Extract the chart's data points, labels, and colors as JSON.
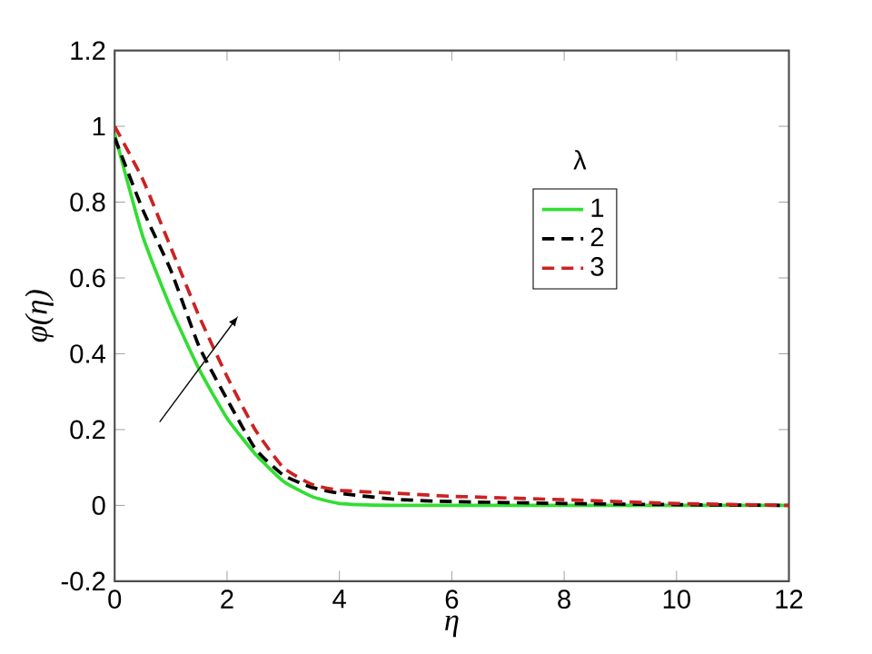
{
  "chart_data": {
    "type": "line",
    "xlabel": "η",
    "ylabel": "φ(η)",
    "legend_title": "λ",
    "legend": "right",
    "xlim": [
      0,
      12
    ],
    "ylim": [
      -0.2,
      1.2
    ],
    "xticks": [
      0,
      2,
      4,
      6,
      8,
      10,
      12
    ],
    "yticks": [
      -0.2,
      0,
      0.2,
      0.4,
      0.6,
      0.8,
      1,
      1.2
    ],
    "grid": false,
    "series": [
      {
        "name": "1",
        "color": "#33dd33",
        "line_style": "solid",
        "x": [
          0,
          0.5,
          1,
          1.5,
          2,
          2.5,
          3,
          3.5,
          4,
          5,
          6,
          8,
          10,
          12
        ],
        "values": [
          0.98,
          0.71,
          0.52,
          0.36,
          0.23,
          0.136,
          0.064,
          0.024,
          0.005,
          0,
          0,
          0,
          0,
          0
        ]
      },
      {
        "name": "2",
        "color": "#000000",
        "line_style": "dashed",
        "x": [
          0,
          0.5,
          1,
          1.5,
          2,
          2.5,
          3,
          3.5,
          4,
          5,
          6,
          8,
          10,
          12
        ],
        "values": [
          0.97,
          0.78,
          0.62,
          0.42,
          0.28,
          0.15,
          0.08,
          0.048,
          0.032,
          0.016,
          0.01,
          0.005,
          0.002,
          0
        ]
      },
      {
        "name": "3",
        "color": "#cc2222",
        "line_style": "dashed",
        "x": [
          0,
          0.5,
          1,
          1.5,
          2,
          2.5,
          3,
          3.5,
          4,
          5,
          6,
          8,
          10,
          12
        ],
        "values": [
          1.0,
          0.86,
          0.68,
          0.5,
          0.34,
          0.2,
          0.1,
          0.056,
          0.04,
          0.032,
          0.024,
          0.015,
          0.005,
          0
        ]
      }
    ]
  }
}
